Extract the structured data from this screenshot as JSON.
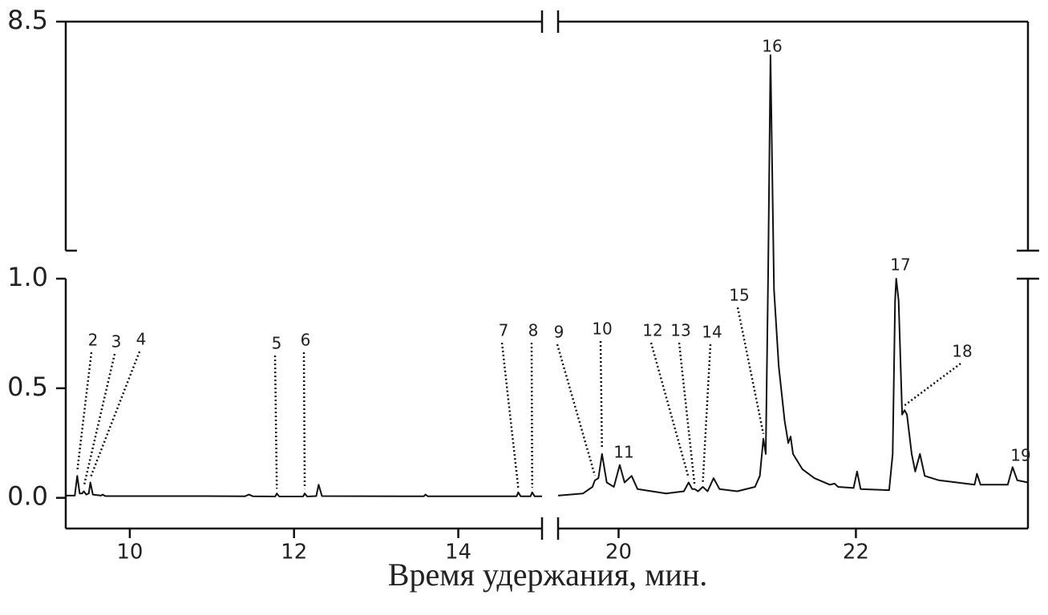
{
  "chart_data": {
    "type": "line",
    "x_label": "Время удержания, мин.",
    "x_axes": [
      {
        "xlim": [
          9.22,
          15.02
        ],
        "xticks": [
          10,
          12,
          14
        ]
      },
      {
        "xlim": [
          19.49,
          23.45
        ],
        "xticks": [
          20,
          22
        ]
      }
    ],
    "y_axes": [
      {
        "ylim": [
          -0.14,
          1.0
        ],
        "yticks": [
          {
            "value": 0,
            "label": "0.0"
          },
          0.5,
          {
            "value": 1,
            "label": "1.0"
          }
        ]
      },
      {
        "ylim": [
          1.0,
          8.5
        ],
        "yticks": [
          8.5
        ]
      }
    ],
    "series": [
      {
        "color": "#111111",
        "x": [
          9.22,
          9.33,
          9.36,
          9.39,
          9.42,
          9.44,
          9.47,
          9.5,
          9.52,
          9.55,
          9.65,
          9.67,
          9.7,
          10.8,
          11.4,
          11.45,
          11.5,
          11.77,
          11.79,
          11.82,
          12.11,
          12.13,
          12.16,
          12.27,
          12.3,
          12.34,
          13.58,
          13.6,
          13.63,
          14.71,
          14.73,
          14.76,
          14.88,
          14.9,
          14.93,
          15.02
        ],
        "values": [
          0.01,
          0.01,
          0.1,
          0.02,
          0.02,
          0.03,
          0.015,
          0.02,
          0.07,
          0.015,
          0.01,
          0.015,
          0.008,
          0.008,
          0.007,
          0.015,
          0.007,
          0.006,
          0.02,
          0.006,
          0.006,
          0.02,
          0.006,
          0.008,
          0.06,
          0.008,
          0.007,
          0.015,
          0.007,
          0.007,
          0.025,
          0.007,
          0.007,
          0.025,
          0.007,
          0.007
        ]
      },
      {
        "color": "#111111",
        "x": [
          19.49,
          19.7,
          19.78,
          19.8,
          19.83,
          19.86,
          19.9,
          19.96,
          20.01,
          20.05,
          20.11,
          20.16,
          20.4,
          20.55,
          20.59,
          20.62,
          20.64,
          20.67,
          20.71,
          20.75,
          20.8,
          20.85,
          21.0,
          21.15,
          21.19,
          21.22,
          21.24,
          21.26,
          21.28,
          21.31,
          21.35,
          21.4,
          21.43,
          21.45,
          21.47,
          21.55,
          21.65,
          21.78,
          21.82,
          21.85,
          21.98,
          22.01,
          22.04,
          22.28,
          22.31,
          22.33,
          22.34,
          22.36,
          22.39,
          22.41,
          22.43,
          22.47,
          22.5,
          22.54,
          22.58,
          22.7,
          22.85,
          23.0,
          23.02,
          23.05,
          23.28,
          23.32,
          23.36,
          23.45
        ],
        "values": [
          0.01,
          0.02,
          0.05,
          0.08,
          0.09,
          0.2,
          0.07,
          0.05,
          0.15,
          0.07,
          0.1,
          0.04,
          0.02,
          0.03,
          0.07,
          0.04,
          0.04,
          0.03,
          0.05,
          0.03,
          0.09,
          0.04,
          0.03,
          0.05,
          0.1,
          0.27,
          0.2,
          1.0,
          7.4,
          0.95,
          0.6,
          0.35,
          0.25,
          0.28,
          0.2,
          0.13,
          0.09,
          0.06,
          0.065,
          0.05,
          0.045,
          0.12,
          0.04,
          0.035,
          0.2,
          0.9,
          1.0,
          0.9,
          0.38,
          0.4,
          0.38,
          0.2,
          0.12,
          0.2,
          0.1,
          0.08,
          0.07,
          0.06,
          0.11,
          0.06,
          0.06,
          0.14,
          0.08,
          0.07
        ]
      }
    ],
    "annotations": [
      {
        "text": "2",
        "x": 9.36,
        "y": 0.1
      },
      {
        "text": "3",
        "x": 9.44,
        "y": 0.03
      },
      {
        "text": "4",
        "x": 9.52,
        "y": 0.07
      },
      {
        "text": "5",
        "x": 11.79,
        "y": 0.02
      },
      {
        "text": "6",
        "x": 12.13,
        "y": 0.02
      },
      {
        "text": "7",
        "x": 14.73,
        "y": 0.025
      },
      {
        "text": "8",
        "x": 14.9,
        "y": 0.025
      },
      {
        "text": "9",
        "x": 19.8,
        "y": 0.08
      },
      {
        "text": "10",
        "x": 19.86,
        "y": 0.2
      },
      {
        "text": "11",
        "x": 20.01,
        "y": 0.15
      },
      {
        "text": "12",
        "x": 20.59,
        "y": 0.07
      },
      {
        "text": "13",
        "x": 20.64,
        "y": 0.04
      },
      {
        "text": "14",
        "x": 20.71,
        "y": 0.05
      },
      {
        "text": "15",
        "x": 21.22,
        "y": 0.27
      },
      {
        "text": "16",
        "x": 21.28,
        "y": 7.4
      },
      {
        "text": "17",
        "x": 22.34,
        "y": 1.0
      },
      {
        "text": "18",
        "x": 22.41,
        "y": 0.4
      },
      {
        "text": "19",
        "x": 23.32,
        "y": 0.14
      }
    ]
  }
}
